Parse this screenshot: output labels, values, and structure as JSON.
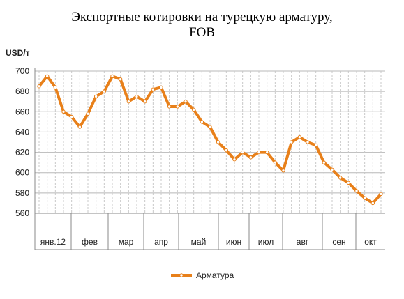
{
  "chart_data": {
    "type": "line",
    "title_line1": "Экспортные котировки на турецкую арматуру,",
    "title_line2": "FOB",
    "ylabel": "USD/т",
    "ylim": [
      560,
      700
    ],
    "yticks": [
      560,
      580,
      600,
      620,
      640,
      660,
      680,
      700
    ],
    "grid": true,
    "legend_position": "bottom",
    "month_labels": [
      "янв.12",
      "фев",
      "мар",
      "апр",
      "май",
      "июн",
      "июл",
      "авг",
      "сен",
      "окт"
    ],
    "series": [
      {
        "name": "Арматура",
        "color": "#E8801A",
        "values": [
          685,
          695,
          684,
          660,
          655,
          645,
          658,
          675,
          680,
          695,
          692,
          670,
          675,
          670,
          682,
          684,
          665,
          665,
          670,
          662,
          650,
          645,
          630,
          622,
          613,
          620,
          615,
          620,
          620,
          610,
          602,
          630,
          635,
          630,
          627,
          610,
          603,
          595,
          590,
          582,
          575,
          570,
          579
        ]
      }
    ]
  }
}
